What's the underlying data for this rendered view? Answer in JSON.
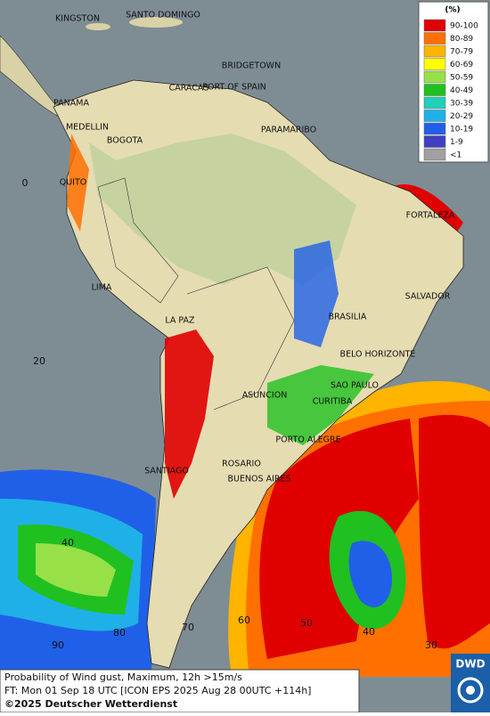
{
  "cities": [
    "KINGSTON",
    "SANTO DOMINGO",
    "BRIDGETOWN",
    "CARACAS",
    "PORT OF SPAIN",
    "PANAMA",
    "MEDELLIN",
    "BOGOTA",
    "PARAMARIBO",
    "QUITO",
    "FORTALEZA",
    "LIMA",
    "SALVADOR",
    "BRASILIA",
    "LA PAZ",
    "BELO HORIZONTE",
    "SAO PAULO",
    "ASUNCION",
    "CURITIBA",
    "PORTO ALEGRE",
    "ROSARIO",
    "SANTIAGO",
    "BUENOS AIRES"
  ],
  "grid_labels": [
    "0",
    "20",
    "40",
    "90",
    "80",
    "70",
    "60",
    "50",
    "40",
    "30"
  ],
  "legend": {
    "title": "(%)",
    "items": [
      {
        "label": "90-100",
        "color": "#e00000"
      },
      {
        "label": "80-89",
        "color": "#ff7000"
      },
      {
        "label": "70-79",
        "color": "#ffb400"
      },
      {
        "label": "60-69",
        "color": "#ffff00"
      },
      {
        "label": "50-59",
        "color": "#98e048"
      },
      {
        "label": "40-49",
        "color": "#20c020"
      },
      {
        "label": "30-39",
        "color": "#20d0b8"
      },
      {
        "label": "20-29",
        "color": "#20b0e8"
      },
      {
        "label": "10-19",
        "color": "#2060e8"
      },
      {
        "label": "1-9",
        "color": "#4040c0"
      },
      {
        "label": "<1",
        "color": "#a0a0a0"
      }
    ]
  },
  "footer": {
    "line1": "Probability of Wind gust, Maximum, 12h >15m/s",
    "line2": "FT: Mon 01 Sep 18 UTC [ICON EPS 2025 Aug 28 00UTC +114h]",
    "copyright": "©2025 Deutscher Wetterdienst"
  },
  "logo": "DWD"
}
